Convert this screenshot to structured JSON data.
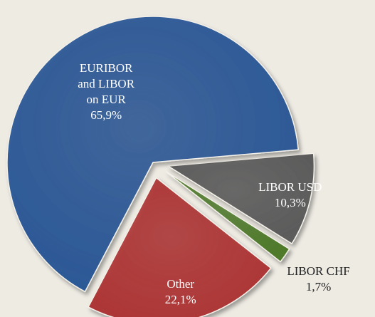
{
  "chart_data": {
    "type": "pie",
    "categories": [
      "LIBOR USD",
      "LIBOR CHF",
      "Other",
      "EURIBOR and LIBOR on EUR"
    ],
    "values": [
      10.3,
      1.7,
      22.1,
      65.9
    ],
    "value_labels": [
      "10,3%",
      "1,7%",
      "22,1%",
      "65,9%"
    ],
    "colors": [
      "#5b5b5b",
      "#4f7a2c",
      "#ad3535",
      "#2c5896"
    ],
    "exploded": [
      true,
      true,
      true,
      false
    ]
  }
}
